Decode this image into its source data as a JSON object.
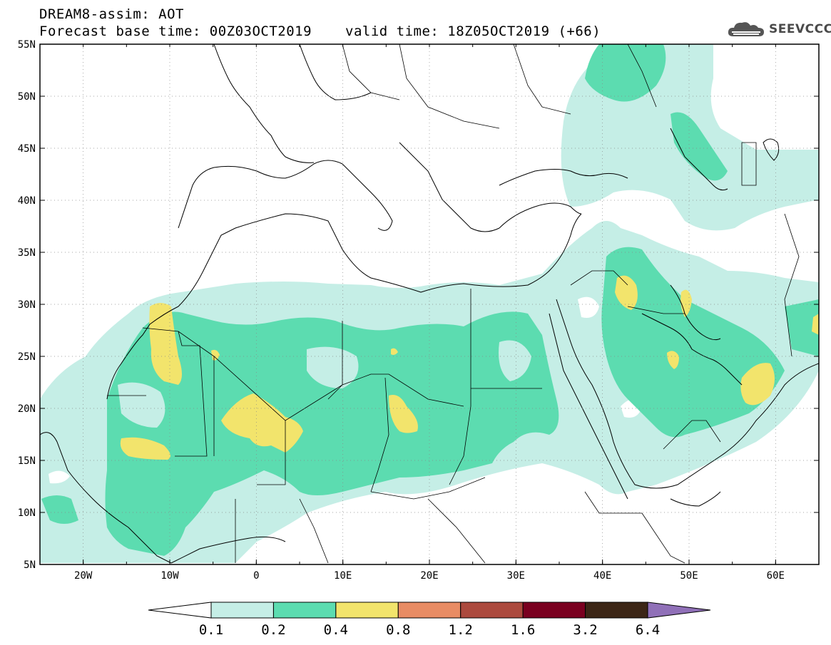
{
  "header": {
    "title": "DREAM8-assim: AOT",
    "base_time": "Forecast base time: 00Z03OCT2019",
    "valid_time": "valid time: 18Z05OCT2019 (+66)"
  },
  "logo": {
    "text": "SEEVCCC",
    "icon": "cloud-icon"
  },
  "map": {
    "lon_range": [
      -25,
      65
    ],
    "lat_range": [
      5,
      55
    ],
    "lon_ticks": [
      "20W",
      "10W",
      "0",
      "10E",
      "20E",
      "30E",
      "40E",
      "50E",
      "60E"
    ],
    "lat_ticks": [
      "55N",
      "50N",
      "45N",
      "40N",
      "35N",
      "30N",
      "25N",
      "20N",
      "15N",
      "10N",
      "5N"
    ],
    "grid": "dotted"
  },
  "colorbar": {
    "labels": [
      "0.1",
      "0.2",
      "0.4",
      "0.8",
      "1.2",
      "1.6",
      "3.2",
      "6.4"
    ],
    "colors": [
      "#ffffff",
      "#c5eee6",
      "#5cdcb0",
      "#f2e46c",
      "#e88c64",
      "#ac4a3e",
      "#7a0020",
      "#3c2616",
      "#9070b8"
    ]
  },
  "levels": {
    "l1": "#c5eee6",
    "l2": "#5cdcb0",
    "l3": "#f2e46c"
  }
}
